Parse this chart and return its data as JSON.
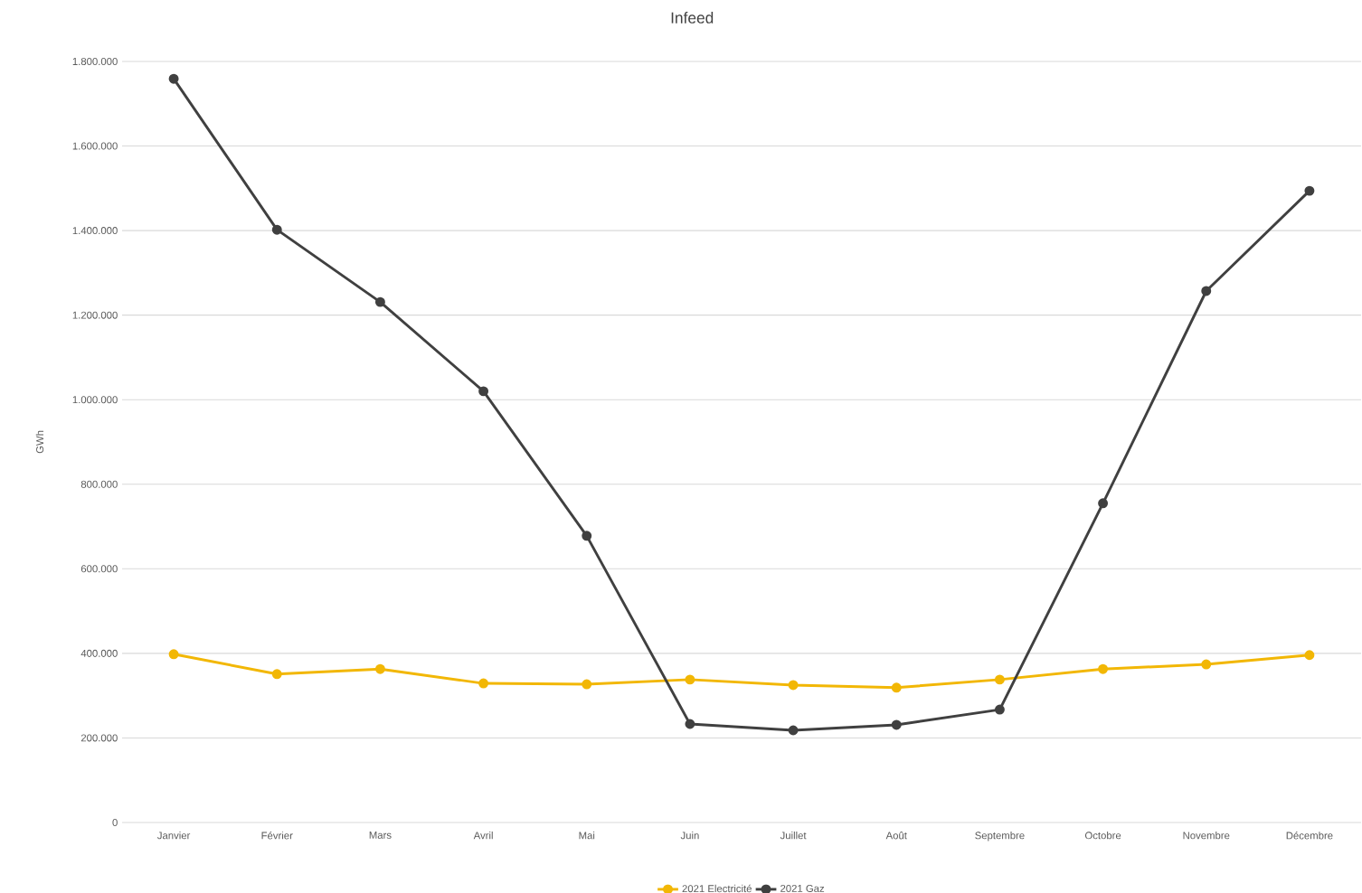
{
  "chart_data": {
    "type": "line",
    "title": "Infeed",
    "ylabel": "GWh",
    "categories": [
      "Janvier",
      "Février",
      "Mars",
      "Avril",
      "Mai",
      "Juin",
      "Juillet",
      "Août",
      "Septembre",
      "Octobre",
      "Novembre",
      "Décembre"
    ],
    "series": [
      {
        "name": "2021 Electricité",
        "color": "#f2b705",
        "values": [
          398000,
          351000,
          363000,
          329000,
          327000,
          338000,
          325000,
          319000,
          338000,
          363000,
          374000,
          396000
        ]
      },
      {
        "name": "2021 Gaz",
        "color": "#404040",
        "values": [
          1759000,
          1402000,
          1231000,
          1020000,
          678000,
          233000,
          218000,
          231000,
          267000,
          755000,
          1257000,
          1494000
        ]
      }
    ],
    "ylim": [
      0,
      1800000
    ],
    "yticks": [
      0,
      {
        "value": 200000,
        "label": "200.000"
      },
      {
        "value": 400000,
        "label": "400.000"
      },
      {
        "value": 600000,
        "label": "600.000"
      },
      {
        "value": 800000,
        "label": "800.000"
      },
      {
        "value": 1000000,
        "label": "1.000.000"
      },
      {
        "value": 1200000,
        "label": "1.200.000"
      },
      {
        "value": 1400000,
        "label": "1.400.000"
      },
      {
        "value": 1600000,
        "label": "1.600.000"
      },
      {
        "value": 1800000,
        "label": "1.800.000"
      }
    ],
    "grid": "y",
    "legend": "bottom",
    "marker": "circle",
    "line_style": "solid"
  }
}
